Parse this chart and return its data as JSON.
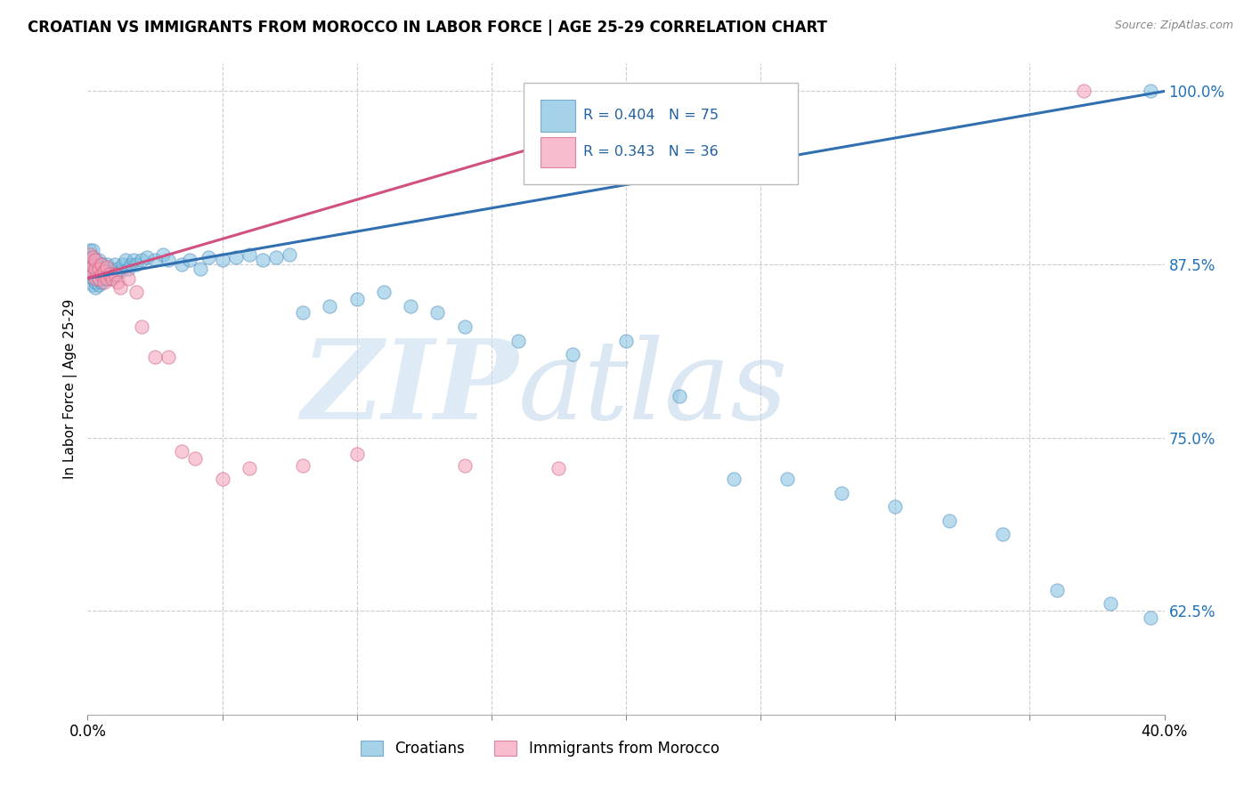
{
  "title": "CROATIAN VS IMMIGRANTS FROM MOROCCO IN LABOR FORCE | AGE 25-29 CORRELATION CHART",
  "source": "Source: ZipAtlas.com",
  "ylabel": "In Labor Force | Age 25-29",
  "xlim": [
    0.0,
    0.4
  ],
  "ylim": [
    0.55,
    1.02
  ],
  "ytick_positions": [
    0.625,
    0.75,
    0.875,
    1.0
  ],
  "ytick_labels": [
    "62.5%",
    "75.0%",
    "87.5%",
    "100.0%"
  ],
  "xtick_positions": [
    0.0,
    0.05,
    0.1,
    0.15,
    0.2,
    0.25,
    0.3,
    0.35,
    0.4
  ],
  "xtick_labels": [
    "0.0%",
    "",
    "",
    "",
    "",
    "",
    "",
    "",
    "40.0%"
  ],
  "grid_color": "#cccccc",
  "blue_color": "#7fbfdf",
  "pink_color": "#f4a0b8",
  "blue_line_color": "#3070b0",
  "pink_line_color": "#d05080",
  "R_blue": 0.404,
  "N_blue": 75,
  "R_pink": 0.343,
  "N_pink": 36,
  "watermark_zip": "ZIP",
  "watermark_atlas": "atlas",
  "legend_labels": [
    "Croatians",
    "Immigrants from Morocco"
  ],
  "blue_line_x0": 0.0,
  "blue_line_y0": 0.865,
  "blue_line_x1": 0.4,
  "blue_line_y1": 1.0,
  "pink_line_x0": 0.0,
  "pink_line_x1": 0.185,
  "pink_line_y0": 0.865,
  "pink_line_y1": 0.97,
  "blue_x": [
    0.001,
    0.001,
    0.001,
    0.001,
    0.002,
    0.002,
    0.002,
    0.002,
    0.002,
    0.002,
    0.003,
    0.003,
    0.003,
    0.003,
    0.003,
    0.004,
    0.004,
    0.004,
    0.004,
    0.005,
    0.005,
    0.005,
    0.006,
    0.006,
    0.007,
    0.007,
    0.008,
    0.008,
    0.009,
    0.01,
    0.01,
    0.011,
    0.012,
    0.013,
    0.014,
    0.015,
    0.016,
    0.017,
    0.018,
    0.02,
    0.022,
    0.025,
    0.028,
    0.03,
    0.035,
    0.038,
    0.042,
    0.045,
    0.05,
    0.055,
    0.06,
    0.065,
    0.07,
    0.075,
    0.08,
    0.09,
    0.1,
    0.11,
    0.12,
    0.13,
    0.14,
    0.16,
    0.18,
    0.2,
    0.22,
    0.24,
    0.26,
    0.28,
    0.3,
    0.32,
    0.34,
    0.36,
    0.38,
    0.395,
    0.395
  ],
  "blue_y": [
    0.87,
    0.875,
    0.88,
    0.885,
    0.86,
    0.865,
    0.87,
    0.875,
    0.88,
    0.885,
    0.858,
    0.862,
    0.868,
    0.872,
    0.878,
    0.86,
    0.865,
    0.87,
    0.878,
    0.862,
    0.868,
    0.875,
    0.865,
    0.872,
    0.868,
    0.875,
    0.865,
    0.872,
    0.87,
    0.868,
    0.875,
    0.872,
    0.87,
    0.875,
    0.878,
    0.872,
    0.875,
    0.878,
    0.875,
    0.878,
    0.88,
    0.878,
    0.882,
    0.878,
    0.875,
    0.878,
    0.872,
    0.88,
    0.878,
    0.88,
    0.882,
    0.878,
    0.88,
    0.882,
    0.84,
    0.845,
    0.85,
    0.855,
    0.845,
    0.84,
    0.83,
    0.82,
    0.81,
    0.82,
    0.78,
    0.72,
    0.72,
    0.71,
    0.7,
    0.69,
    0.68,
    0.64,
    0.63,
    0.62,
    1.0
  ],
  "pink_x": [
    0.001,
    0.001,
    0.001,
    0.002,
    0.002,
    0.002,
    0.003,
    0.003,
    0.003,
    0.004,
    0.004,
    0.005,
    0.005,
    0.006,
    0.006,
    0.007,
    0.007,
    0.008,
    0.009,
    0.01,
    0.011,
    0.012,
    0.015,
    0.018,
    0.02,
    0.025,
    0.03,
    0.035,
    0.04,
    0.05,
    0.06,
    0.08,
    0.1,
    0.14,
    0.175,
    0.37
  ],
  "pink_y": [
    0.87,
    0.876,
    0.882,
    0.868,
    0.874,
    0.88,
    0.865,
    0.872,
    0.878,
    0.865,
    0.872,
    0.868,
    0.875,
    0.862,
    0.87,
    0.865,
    0.873,
    0.868,
    0.865,
    0.868,
    0.862,
    0.858,
    0.865,
    0.855,
    0.83,
    0.808,
    0.808,
    0.74,
    0.735,
    0.72,
    0.728,
    0.73,
    0.738,
    0.73,
    0.728,
    1.0
  ]
}
